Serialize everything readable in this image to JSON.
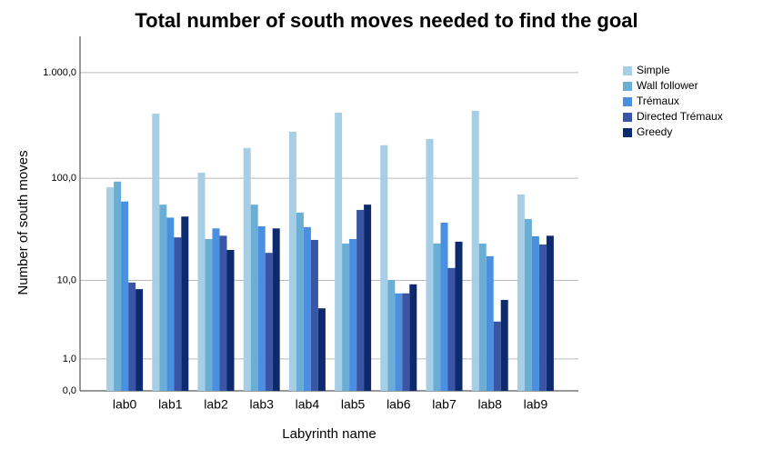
{
  "chart_data": {
    "type": "bar",
    "title": "Total number of south moves needed to find the goal",
    "x_label": "Labyrinth name",
    "y_label": "Number of south moves",
    "yscale": "safe-log",
    "categories": [
      "lab0",
      "lab1",
      "lab2",
      "lab3",
      "lab4",
      "lab5",
      "lab6",
      "lab7",
      "lab8",
      "lab9"
    ],
    "series": [
      {
        "name": "Simple",
        "color": "#a6cee4",
        "values": [
          82,
          410,
          113,
          194,
          277,
          419,
          206,
          236,
          436,
          70
        ]
      },
      {
        "name": "Wall follower",
        "color": "#6aaed6",
        "values": [
          93,
          56,
          26,
          56,
          47,
          23.5,
          10.1,
          23.5,
          23.5,
          40.7
        ]
      },
      {
        "name": "Trémaux",
        "color": "#4a8fe0",
        "values": [
          60,
          42,
          33,
          34.6,
          34,
          26,
          7.3,
          37.5,
          17.6,
          27.7
        ]
      },
      {
        "name": "Directed Trémaux",
        "color": "#3b55a6",
        "values": [
          9.5,
          27,
          28,
          19,
          25.5,
          49.8,
          7.3,
          13.4,
          3.5,
          23
        ]
      },
      {
        "name": "Greedy",
        "color": "#0d2a6e",
        "values": [
          8.1,
          43,
          20.3,
          33,
          5.0,
          56,
          9.1,
          24.5,
          6.2,
          28
        ]
      }
    ],
    "ylim": [
      0,
      2200
    ],
    "yticks": [
      {
        "value": 0,
        "label": "0,0"
      },
      {
        "value": 1,
        "label": "1,0"
      },
      {
        "value": 10,
        "label": "10,0"
      },
      {
        "value": 100,
        "label": "100,0"
      },
      {
        "value": 1000,
        "label": "1.000,0"
      }
    ],
    "grid": true,
    "legend": "right"
  }
}
